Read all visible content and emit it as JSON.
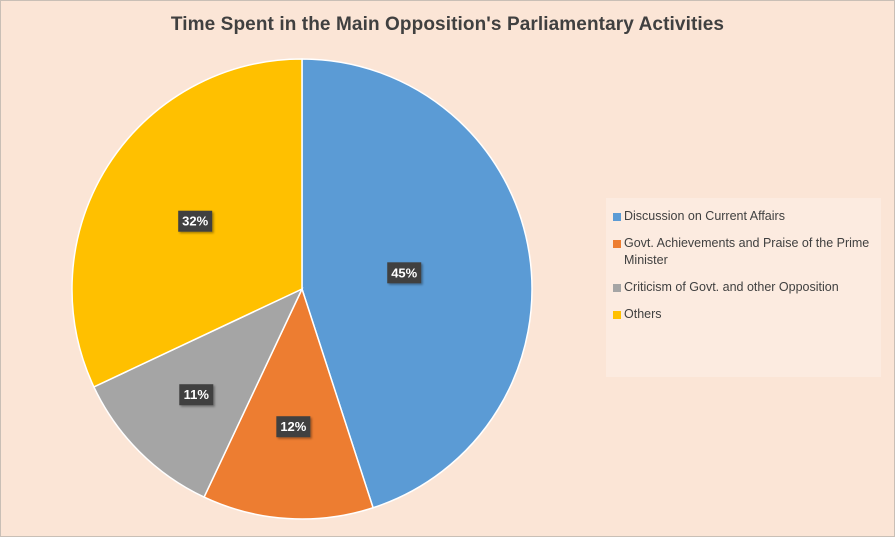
{
  "chart_data": {
    "type": "pie",
    "title": "Time Spent in the Main Opposition's Parliamentary Activities",
    "categories": [
      "Discussion on Current Affairs",
      "Govt. Achievements and Praise of the Prime Minister",
      "Criticism of Govt. and other Opposition",
      "Others"
    ],
    "values": [
      45,
      12,
      11,
      32
    ],
    "data_labels": [
      "45%",
      "12%",
      "11%",
      "32%"
    ],
    "colors": [
      "#5b9bd5",
      "#ed7d31",
      "#a5a5a5",
      "#ffc000"
    ],
    "start_angle_deg": 0,
    "direction": "clockwise",
    "legend_position": "right",
    "background_color": "#fbe5d6"
  }
}
